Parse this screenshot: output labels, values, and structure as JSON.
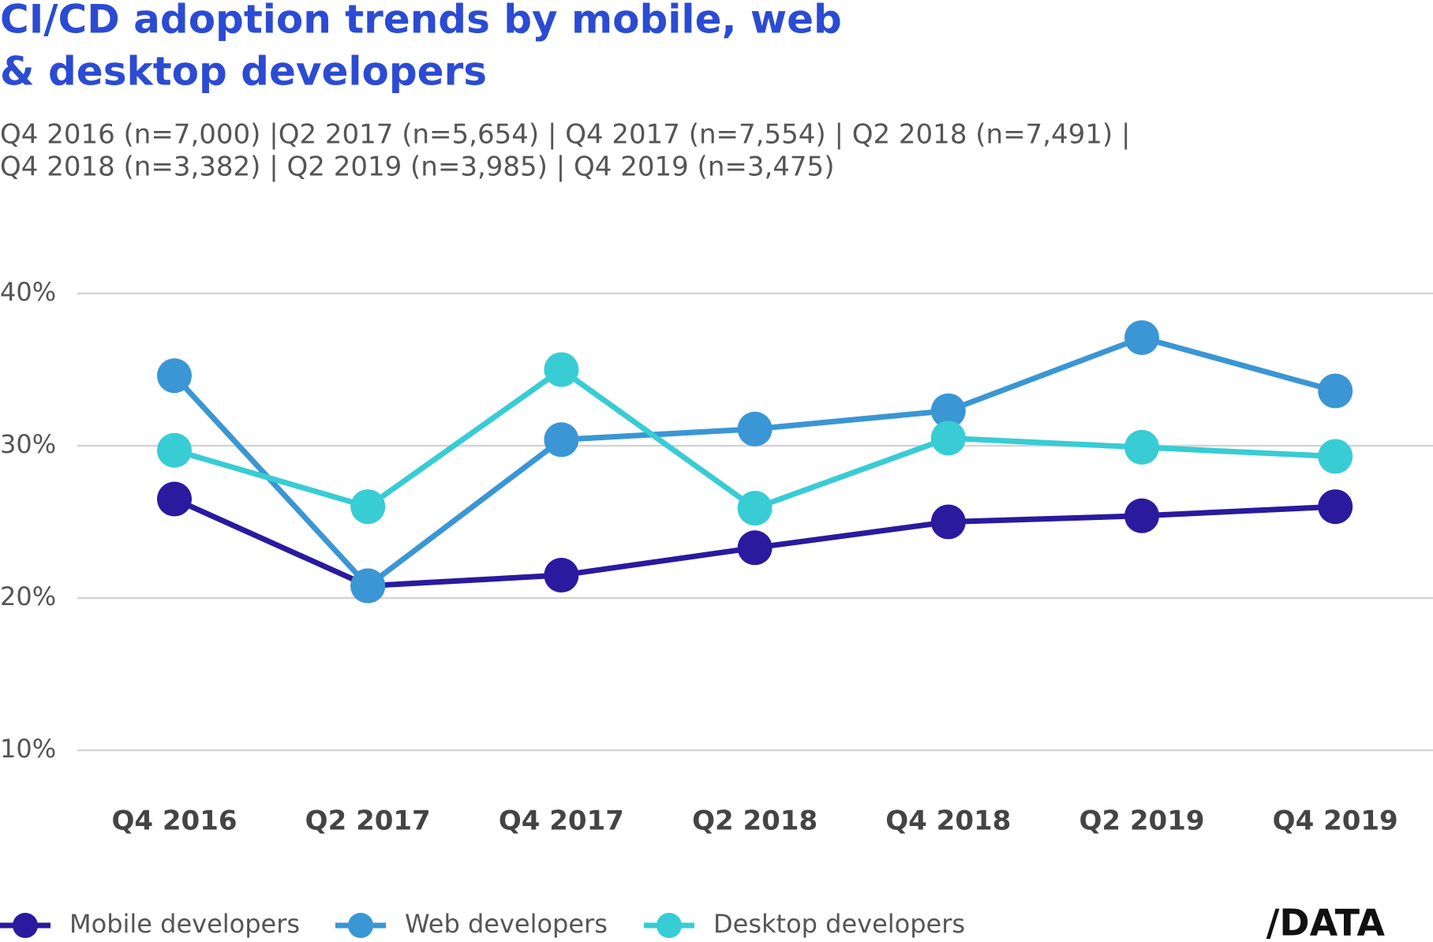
{
  "chart_data": {
    "type": "line",
    "title": [
      "CI/CD adoption  trends by mobile, web",
      "& desktop developers"
    ],
    "subtitle": [
      "Q4 2016 (n=7,000) |Q2 2017 (n=5,654) | Q4 2017 (n=7,554) | Q2 2018 (n=7,491) |",
      "Q4 2018 (n=3,382) | Q2 2019 (n=3,985) | Q4 2019 (n=3,475)"
    ],
    "categories": [
      "Q4  2016",
      "Q2 2017",
      "Q4 2017",
      "Q2 2018",
      "Q4 2018",
      "Q2 2019",
      "Q4 2019"
    ],
    "series": [
      {
        "name": "Mobile developers",
        "color": "#2a1a9e",
        "values": [
          26.5,
          20.8,
          21.5,
          23.3,
          25.0,
          25.4,
          26.0
        ]
      },
      {
        "name": "Web developers",
        "color": "#3a96d4",
        "values": [
          34.6,
          20.8,
          30.4,
          31.1,
          32.3,
          37.1,
          33.6
        ]
      },
      {
        "name": "Desktop developers",
        "color": "#38ccd4",
        "values": [
          29.7,
          26.0,
          35.0,
          25.9,
          30.5,
          29.9,
          29.3
        ]
      }
    ],
    "ylim": [
      10,
      40
    ],
    "yticks": [
      {
        "value": 10,
        "label": "10%"
      },
      {
        "value": 20,
        "label": "20%"
      },
      {
        "value": 30,
        "label": "30%"
      },
      {
        "value": 40,
        "label": "40%"
      }
    ],
    "grid": true,
    "legend": "bottom",
    "logo": "/DATA"
  }
}
